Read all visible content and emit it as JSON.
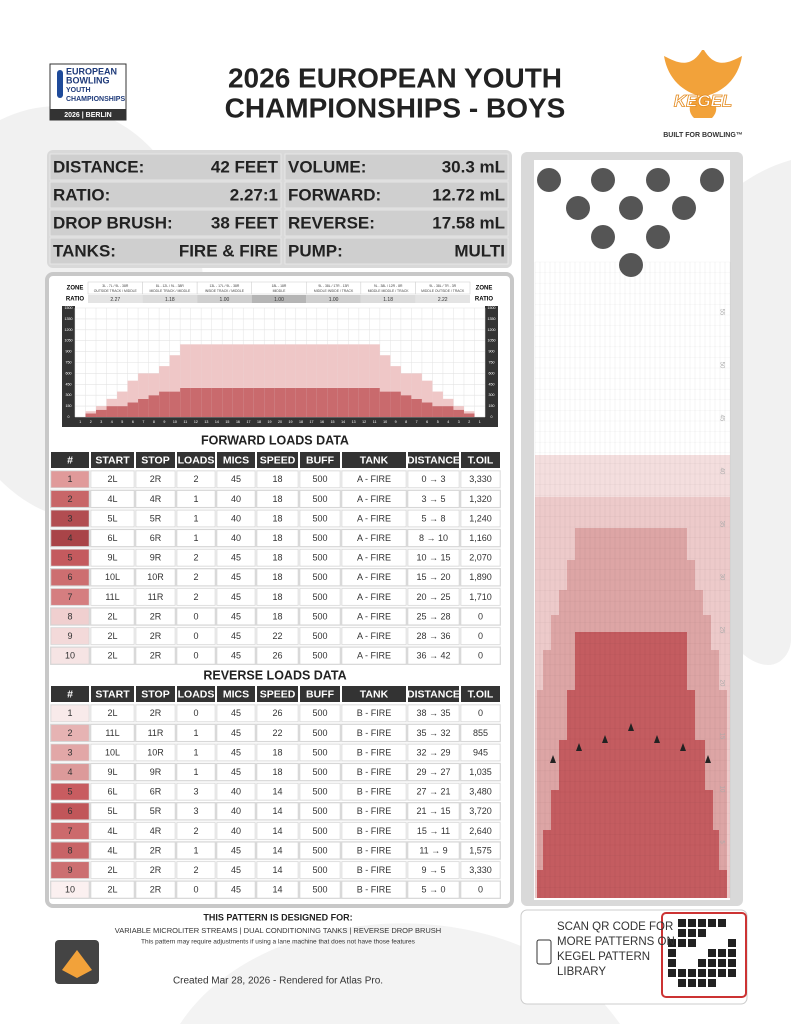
{
  "header": {
    "logo_lines": [
      "EUROPEAN",
      "BOWLING",
      "YOUTH",
      "CHAMPIONSHIPS"
    ],
    "logo_footer": "2026 | BERLIN",
    "title_lines": [
      "2026 EUROPEAN YOUTH",
      "CHAMPIONSHIPS - BOYS"
    ],
    "brand": "KEGEL",
    "tagline": "BUILT FOR BOWLING™"
  },
  "specs": [
    {
      "label": "DISTANCE:",
      "value": "42 FEET"
    },
    {
      "label": "RATIO:",
      "value": "2.27:1"
    },
    {
      "label": "DROP BRUSH:",
      "value": "38 FEET"
    },
    {
      "label": "TANKS:",
      "value": "FIRE & FIRE"
    },
    {
      "label": "VOLUME:",
      "value": "30.3 mL"
    },
    {
      "label": "FORWARD:",
      "value": "12.72 mL"
    },
    {
      "label": "REVERSE:",
      "value": "17.58 mL"
    },
    {
      "label": "PUMP:",
      "value": "MULTI"
    }
  ],
  "zones": {
    "zone_label": "ZONE",
    "ratio_label": "RATIO",
    "names": [
      [
        "3L - 7L / 9L - 38R",
        "OUTSIDE TRACK / MIDDLE"
      ],
      [
        "8L - 12L / 9L - 38R",
        "MIDDLE TRACK / MIDDLE"
      ],
      [
        "13L - 17L / 9L - 38R",
        "INSIDE TRACK / MIDDLE"
      ],
      [
        "18L - 18R",
        "MIDDLE"
      ],
      [
        "9L - 38L / 17R - 13R",
        "MIDDLE INSIDE / TRACK"
      ],
      [
        "9L - 38L / 12R - 8R",
        "MIDDLE MIDDLE / TRACK"
      ],
      [
        "9L - 38L / 7R - 3R",
        "MIDDLE OUTSIDE / TRACK"
      ]
    ],
    "ratios": [
      "2.27",
      "1.18",
      "1.00",
      "1.00",
      "1.00",
      "1.18",
      "2.22"
    ]
  },
  "chart_data": {
    "type": "bar",
    "stacked": true,
    "grid": true,
    "categories": [
      1,
      2,
      3,
      4,
      5,
      6,
      7,
      8,
      9,
      10,
      11,
      12,
      13,
      14,
      15,
      16,
      17,
      18,
      19,
      20,
      19,
      18,
      17,
      16,
      15,
      14,
      13,
      12,
      11,
      10,
      9,
      8,
      7,
      6,
      5,
      4,
      3,
      2,
      1
    ],
    "series": [
      {
        "color": "#c96a6d",
        "values": [
          0,
          50,
          100,
          150,
          150,
          200,
          250,
          300,
          350,
          350,
          400,
          400,
          400,
          400,
          400,
          400,
          400,
          400,
          400,
          400,
          400,
          400,
          400,
          400,
          400,
          400,
          400,
          400,
          400,
          350,
          350,
          300,
          250,
          200,
          150,
          150,
          100,
          50,
          0
        ]
      },
      {
        "color": "#efc7c7",
        "values": [
          0,
          30,
          50,
          100,
          200,
          300,
          350,
          300,
          350,
          500,
          600,
          600,
          600,
          600,
          600,
          600,
          600,
          600,
          600,
          600,
          600,
          600,
          600,
          600,
          600,
          600,
          600,
          600,
          600,
          500,
          350,
          300,
          350,
          300,
          200,
          100,
          50,
          30,
          0
        ]
      }
    ],
    "ylim": [
      0,
      1500
    ],
    "yticks": [
      0,
      150,
      300,
      450,
      600,
      750,
      900,
      1050,
      1200,
      1350,
      1500
    ]
  },
  "forward": {
    "title": "FORWARD LOADS DATA",
    "columns": [
      "#",
      "START",
      "STOP",
      "LOADS",
      "MICS",
      "SPEED",
      "BUFF",
      "TANK",
      "DISTANCE",
      "T.OIL"
    ],
    "rows": [
      [
        1,
        "2L",
        "2R",
        2,
        45,
        18,
        500,
        "A - FIRE",
        "0 → 3",
        "3,330"
      ],
      [
        2,
        "4L",
        "4R",
        1,
        40,
        18,
        500,
        "A - FIRE",
        "3 → 5",
        "1,320"
      ],
      [
        3,
        "5L",
        "5R",
        1,
        40,
        18,
        500,
        "A - FIRE",
        "5 → 8",
        "1,240"
      ],
      [
        4,
        "6L",
        "6R",
        1,
        40,
        18,
        500,
        "A - FIRE",
        "8 → 10",
        "1,160"
      ],
      [
        5,
        "9L",
        "9R",
        2,
        45,
        18,
        500,
        "A - FIRE",
        "10 → 15",
        "2,070"
      ],
      [
        6,
        "10L",
        "10R",
        2,
        45,
        18,
        500,
        "A - FIRE",
        "15 → 20",
        "1,890"
      ],
      [
        7,
        "11L",
        "11R",
        2,
        45,
        18,
        500,
        "A - FIRE",
        "20 → 25",
        "1,710"
      ],
      [
        8,
        "2L",
        "2R",
        0,
        45,
        18,
        500,
        "A - FIRE",
        "25 → 28",
        0
      ],
      [
        9,
        "2L",
        "2R",
        0,
        45,
        22,
        500,
        "A - FIRE",
        "28 → 36",
        0
      ],
      [
        10,
        "2L",
        "2R",
        0,
        45,
        26,
        500,
        "A - FIRE",
        "36 → 42",
        0
      ]
    ]
  },
  "reverse": {
    "title": "REVERSE LOADS DATA",
    "columns": [
      "#",
      "START",
      "STOP",
      "LOADS",
      "MICS",
      "SPEED",
      "BUFF",
      "TANK",
      "DISTANCE",
      "T.OIL"
    ],
    "rows": [
      [
        1,
        "2L",
        "2R",
        0,
        45,
        26,
        500,
        "B - FIRE",
        "38 → 35",
        0
      ],
      [
        2,
        "11L",
        "11R",
        1,
        45,
        22,
        500,
        "B - FIRE",
        "35 → 32",
        855
      ],
      [
        3,
        "10L",
        "10R",
        1,
        45,
        18,
        500,
        "B - FIRE",
        "32 → 29",
        945
      ],
      [
        4,
        "9L",
        "9R",
        1,
        45,
        18,
        500,
        "B - FIRE",
        "29 → 27",
        "1,035"
      ],
      [
        5,
        "6L",
        "6R",
        3,
        40,
        14,
        500,
        "B - FIRE",
        "27 → 21",
        "3,480"
      ],
      [
        6,
        "5L",
        "5R",
        3,
        40,
        14,
        500,
        "B - FIRE",
        "21 → 15",
        "3,720"
      ],
      [
        7,
        "4L",
        "4R",
        2,
        40,
        14,
        500,
        "B - FIRE",
        "15 → 11",
        "2,640"
      ],
      [
        8,
        "4L",
        "2R",
        1,
        45,
        14,
        500,
        "B - FIRE",
        "11 → 9",
        "1,575"
      ],
      [
        9,
        "2L",
        "2R",
        2,
        45,
        14,
        500,
        "B - FIRE",
        "9 → 5",
        "3,330"
      ],
      [
        10,
        "2L",
        "2R",
        0,
        45,
        14,
        500,
        "B - FIRE",
        "5 → 0",
        0
      ]
    ]
  },
  "lane": {
    "distance_marks": [
      "55",
      "50",
      "45",
      "40",
      "35",
      "30",
      "25",
      "20",
      "15",
      "10",
      "5"
    ]
  },
  "footer": {
    "heading": "THIS PATTERN IS DESIGNED FOR:",
    "features": "VARIABLE MICROLITER STREAMS | DUAL CONDITIONING TANKS | REVERSE DROP BRUSH",
    "note": "This pattern may require adjustments if using a lane machine that does not have those features",
    "created": "Created Mar 28, 2026 - Rendered for Atlas Pro.",
    "qr_lines": [
      "SCAN QR CODE FOR",
      "MORE PATTERNS ON",
      "KEGEL PATTERN",
      "LIBRARY"
    ]
  }
}
